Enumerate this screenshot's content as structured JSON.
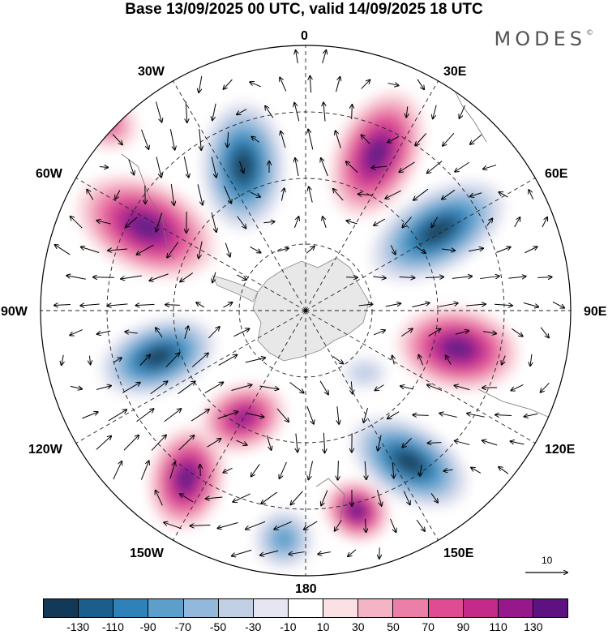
{
  "title": "Base 13/09/2025 00 UTC, valid 14/09/2025 18 UTC",
  "logo": "MODES",
  "logo_mark": "©",
  "longitude_labels": {
    "deg0": "0",
    "deg30e": "30E",
    "deg60e": "60E",
    "deg90e": "90E",
    "deg120e": "120E",
    "deg150e": "150E",
    "deg180": "180",
    "deg150w": "150W",
    "deg120w": "120W",
    "deg90w": "90W",
    "deg60w": "60W",
    "deg30w": "30W"
  },
  "reference_vector_label": "10",
  "colorbar": {
    "colors": [
      "#123a58",
      "#1b5e8c",
      "#2e82b8",
      "#5c9fcb",
      "#92b8dc",
      "#c2d0e6",
      "#e6e6f2",
      "#ffffff",
      "#fbe0e4",
      "#f5b4c6",
      "#ec7fa8",
      "#e04c93",
      "#c42a8a",
      "#96188b",
      "#5e1282"
    ],
    "tick_labels": [
      "-130",
      "-110",
      "-90",
      "-70",
      "-50",
      "-30",
      "-10",
      "10",
      "30",
      "50",
      "70",
      "90",
      "110",
      "130"
    ]
  }
}
